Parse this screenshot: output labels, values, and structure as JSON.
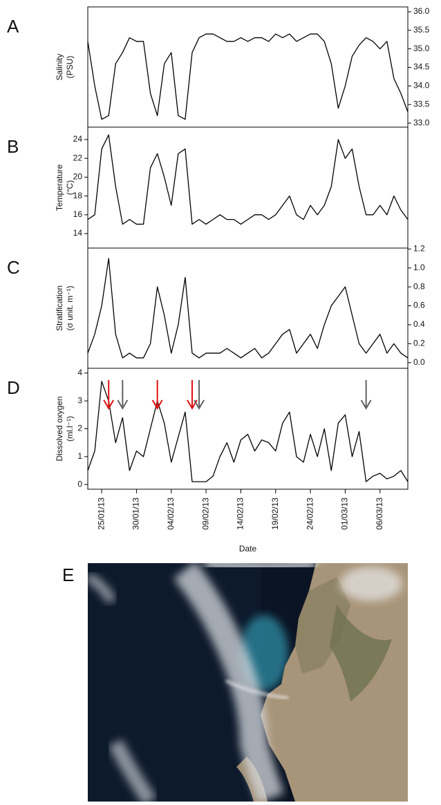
{
  "chart_data": {
    "type": "line",
    "x": [
      "2013-01-23",
      "2013-01-24",
      "2013-01-25",
      "2013-01-26",
      "2013-01-27",
      "2013-01-28",
      "2013-01-29",
      "2013-01-30",
      "2013-01-31",
      "2013-02-01",
      "2013-02-02",
      "2013-02-03",
      "2013-02-04",
      "2013-02-05",
      "2013-02-06",
      "2013-02-07",
      "2013-02-08",
      "2013-02-09",
      "2013-02-10",
      "2013-02-11",
      "2013-02-12",
      "2013-02-13",
      "2013-02-14",
      "2013-02-15",
      "2013-02-16",
      "2013-02-17",
      "2013-02-18",
      "2013-02-19",
      "2013-02-20",
      "2013-02-21",
      "2013-02-22",
      "2013-02-23",
      "2013-02-24",
      "2013-02-25",
      "2013-02-26",
      "2013-02-27",
      "2013-02-28",
      "2013-03-01",
      "2013-03-02",
      "2013-03-03",
      "2013-03-04",
      "2013-03-05",
      "2013-03-06",
      "2013-03-07",
      "2013-03-08",
      "2013-03-09",
      "2013-03-10"
    ],
    "xlim": [
      "2013-01-23",
      "2013-03-10"
    ],
    "xticks": [
      {
        "value": "2013-01-25",
        "label": "25/01/13"
      },
      {
        "value": "2013-01-30",
        "label": "30/01/13"
      },
      {
        "value": "2013-02-04",
        "label": "04/02/13"
      },
      {
        "value": "2013-02-09",
        "label": "09/02/13"
      },
      {
        "value": "2013-02-14",
        "label": "14/02/13"
      },
      {
        "value": "2013-02-19",
        "label": "19/02/13"
      },
      {
        "value": "2013-02-24",
        "label": "24/02/13"
      },
      {
        "value": "2013-03-01",
        "label": "01/03/13"
      },
      {
        "value": "2013-03-06",
        "label": "06/03/13"
      }
    ],
    "xlabel": "Date",
    "panels": [
      {
        "label": "A",
        "ylabel": [
          "Salinity",
          "(PSU)"
        ],
        "yaxis_side": "right",
        "color": "#000000",
        "ylim": [
          32.89,
          36.13
        ],
        "yticks": [
          {
            "value": 33,
            "label": "33.0"
          },
          33.5,
          {
            "value": 34,
            "label": "34.0"
          },
          34.5,
          {
            "value": 35,
            "label": "35.0"
          },
          35.5,
          {
            "value": 36,
            "label": "36.0"
          }
        ],
        "values": [
          35.2,
          34.0,
          33.1,
          33.2,
          34.6,
          34.9,
          35.3,
          35.2,
          35.2,
          33.8,
          33.2,
          34.6,
          34.9,
          33.2,
          33.1,
          34.9,
          35.3,
          35.4,
          35.4,
          35.3,
          35.2,
          35.2,
          35.3,
          35.2,
          35.3,
          35.3,
          35.2,
          35.4,
          35.3,
          35.4,
          35.2,
          35.3,
          35.4,
          35.4,
          35.2,
          34.6,
          33.4,
          34.0,
          34.8,
          35.1,
          35.3,
          35.2,
          35.0,
          35.2,
          34.2,
          33.8,
          33.3
        ]
      },
      {
        "label": "B",
        "ylabel": [
          "Temperature",
          "(°C)"
        ],
        "yaxis_side": "left",
        "color": "#000000",
        "ylim": [
          12.46,
          25.32
        ],
        "yticks": [
          14,
          16,
          18,
          20,
          22,
          24
        ],
        "values": [
          15.5,
          16,
          23,
          24.5,
          19,
          15,
          15.5,
          15,
          15,
          21,
          22.5,
          20,
          17,
          22.5,
          23,
          15,
          15.5,
          15,
          15.5,
          16,
          15.5,
          15.5,
          15,
          15.5,
          16,
          16,
          15.5,
          16,
          17,
          18,
          16,
          15.5,
          17,
          16,
          17,
          19,
          24,
          22,
          23,
          19,
          16,
          16,
          17,
          16,
          18,
          16.5,
          15.5
        ]
      },
      {
        "label": "C",
        "ylabel": [
          "Stratification",
          "(σ unit. m⁻¹)"
        ],
        "yaxis_side": "right",
        "color": "#000000",
        "ylim": [
          -0.06,
          1.21
        ],
        "yticks": [
          {
            "value": 0,
            "label": "0.0"
          },
          0.2,
          0.4,
          0.6,
          0.8,
          {
            "value": 1,
            "label": "1.0"
          },
          1.2
        ],
        "values": [
          0.1,
          0.3,
          0.6,
          1.1,
          0.3,
          0.05,
          0.1,
          0.05,
          0.05,
          0.2,
          0.8,
          0.5,
          0.1,
          0.4,
          0.9,
          0.1,
          0.05,
          0.1,
          0.1,
          0.1,
          0.15,
          0.1,
          0.05,
          0.1,
          0.15,
          0.05,
          0.1,
          0.2,
          0.3,
          0.35,
          0.1,
          0.2,
          0.3,
          0.15,
          0.4,
          0.6,
          0.7,
          0.8,
          0.5,
          0.2,
          0.1,
          0.2,
          0.3,
          0.1,
          0.2,
          0.1,
          0.05
        ]
      },
      {
        "label": "D",
        "ylabel": [
          "Dissolved oxygen",
          "(ml.l⁻¹)"
        ],
        "yaxis_side": "left",
        "color": "#000000",
        "ylim": [
          -0.17,
          4.17
        ],
        "yticks": [
          0,
          1,
          2,
          3,
          4
        ],
        "values": [
          0.5,
          1.2,
          3.7,
          3.0,
          1.5,
          2.4,
          0.5,
          1.2,
          1.0,
          2.0,
          3.0,
          2.2,
          0.8,
          1.7,
          2.6,
          0.1,
          0.1,
          0.1,
          0.3,
          1.0,
          1.5,
          0.8,
          1.6,
          1.8,
          1.2,
          1.6,
          1.5,
          1.2,
          2.2,
          2.6,
          1.0,
          0.8,
          1.8,
          1.0,
          2.0,
          0.5,
          2.2,
          2.5,
          1.0,
          1.9,
          0.1,
          0.3,
          0.4,
          0.2,
          0.3,
          0.5,
          0.1
        ],
        "arrows": [
          {
            "x": "2013-01-26",
            "color": "#e01010"
          },
          {
            "x": "2013-01-28",
            "color": "#606060"
          },
          {
            "x": "2013-02-02",
            "color": "#e01010"
          },
          {
            "x": "2013-02-07",
            "color": "#e01010"
          },
          {
            "x": "2013-02-08",
            "color": "#606060"
          },
          {
            "x": "2013-03-04",
            "color": "#606060"
          }
        ]
      }
    ]
  },
  "image": {
    "label": "E"
  }
}
